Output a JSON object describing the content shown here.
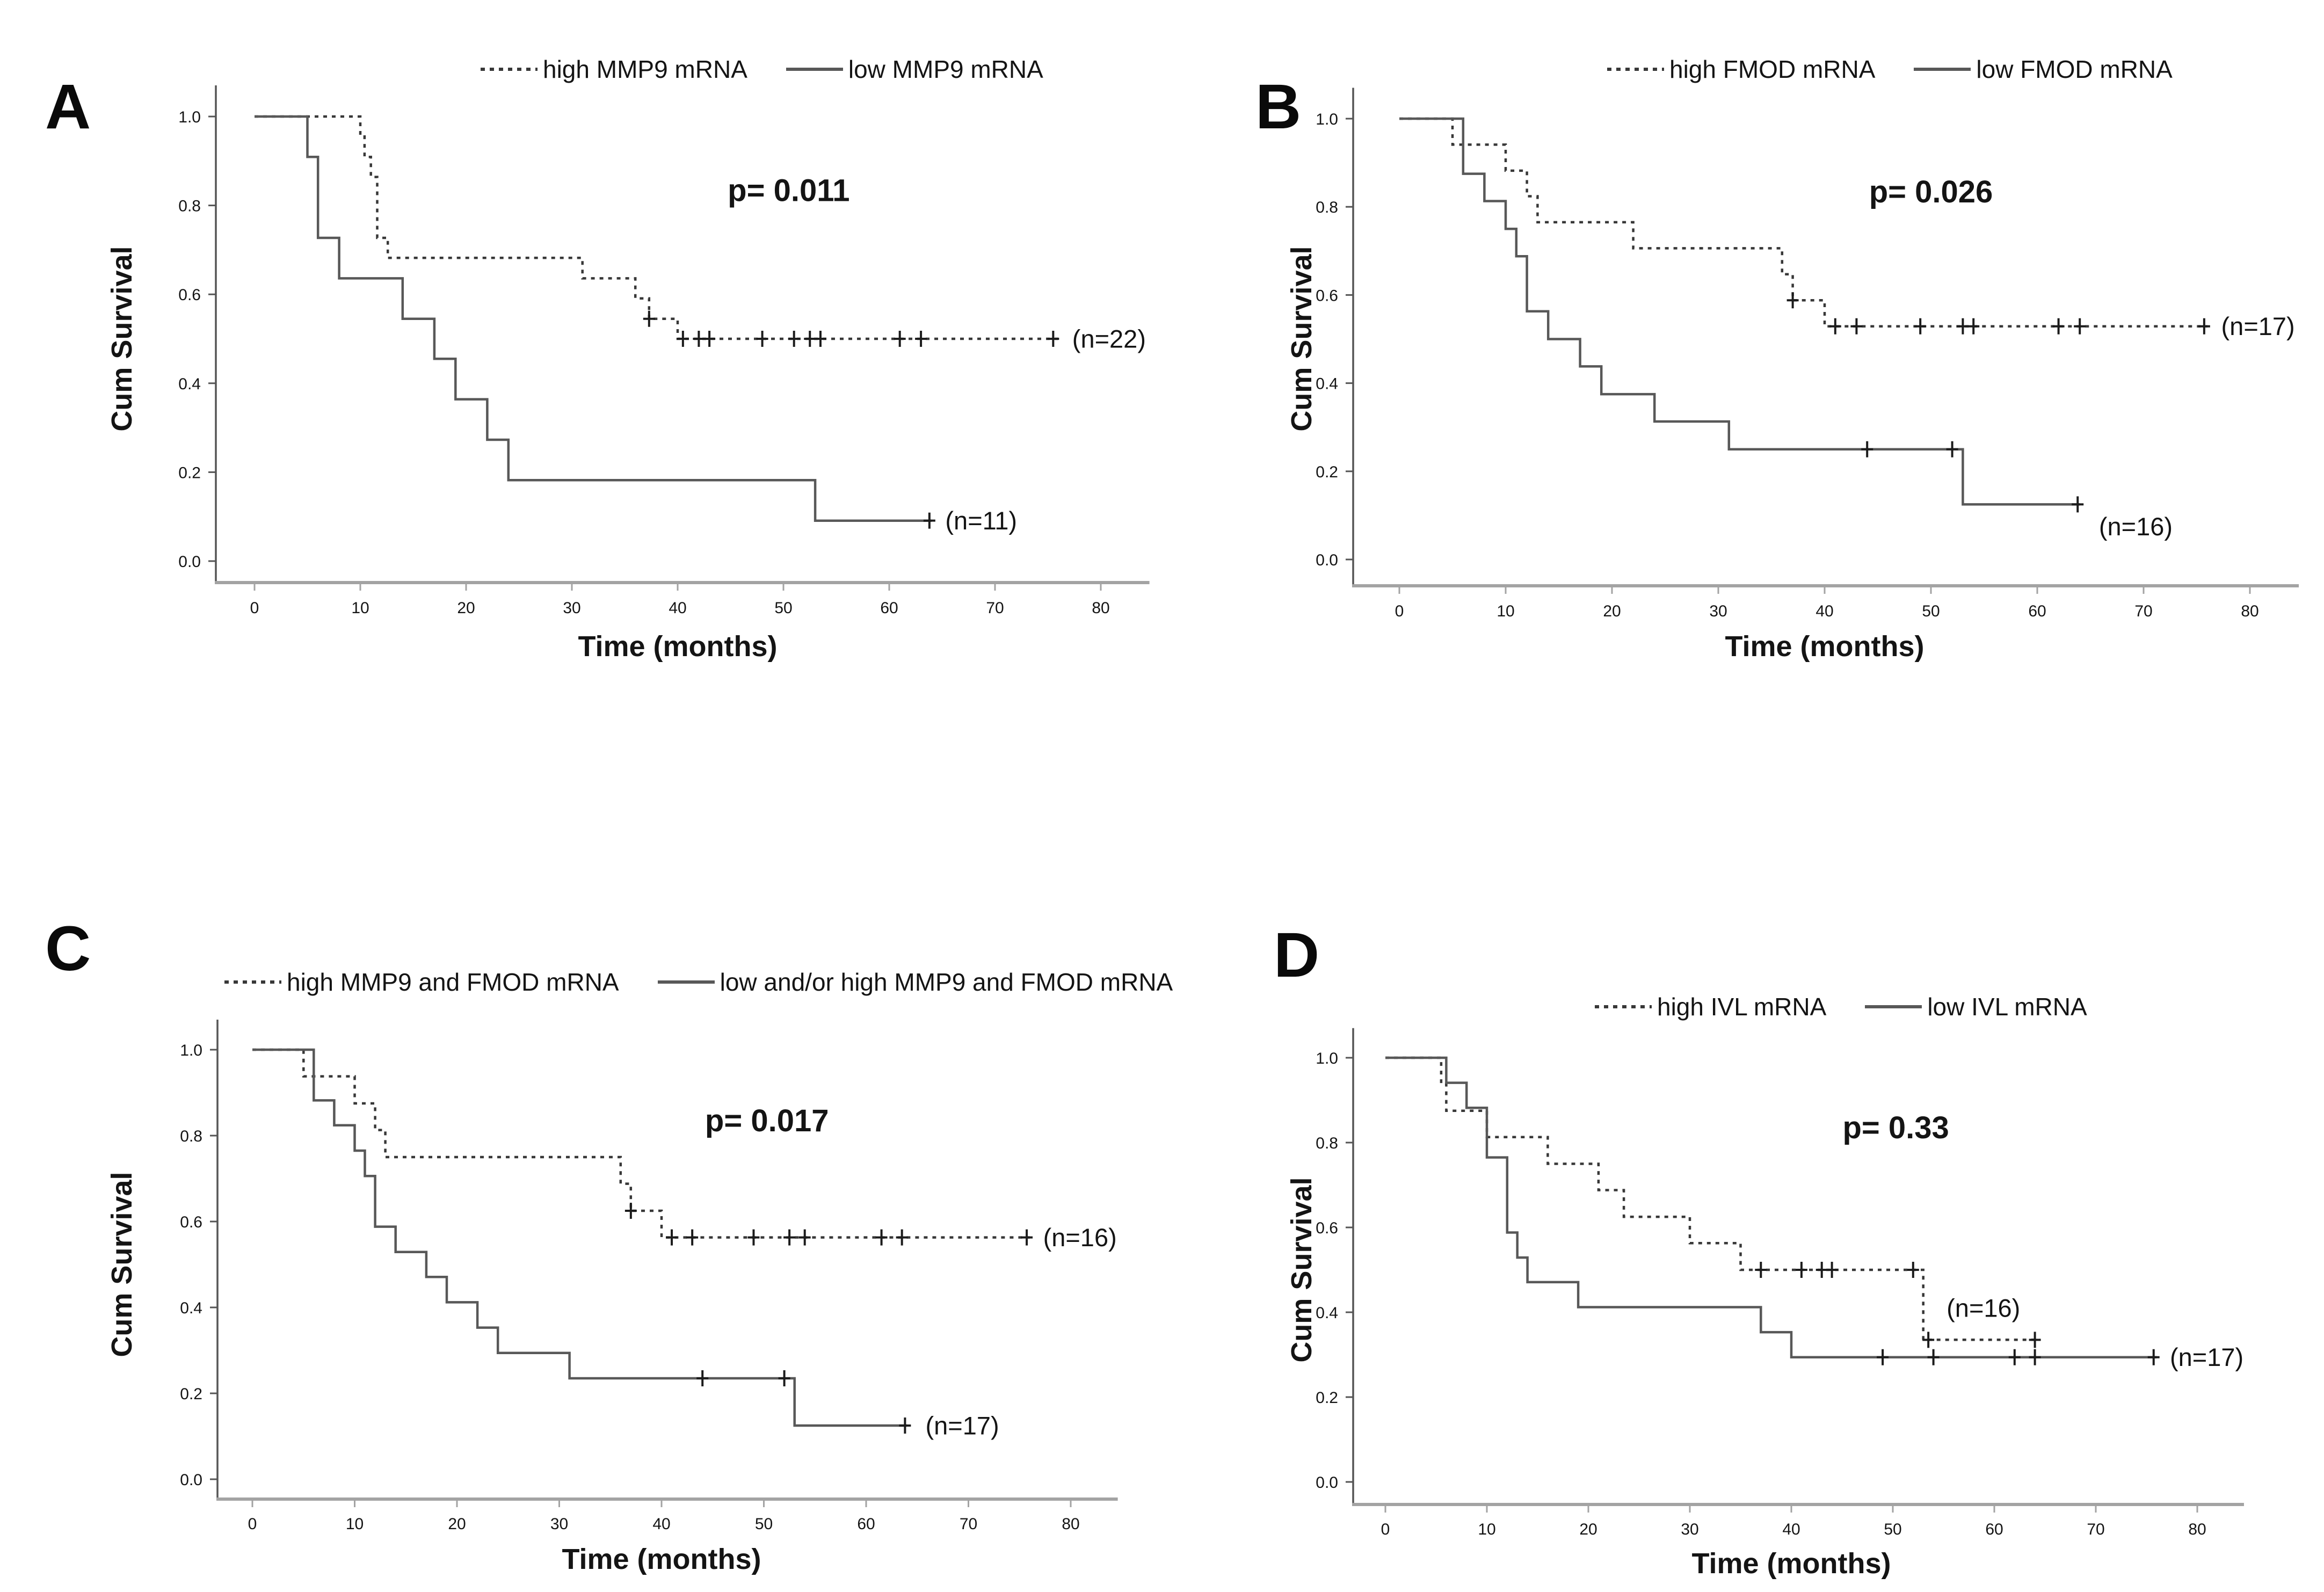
{
  "figure": {
    "description": "Four-panel Kaplan-Meier cumulative survival figure",
    "panel_letters": [
      "A",
      "B",
      "C",
      "D"
    ]
  },
  "colors": {
    "background": "#ffffff",
    "solid_line": "#585858",
    "dashed_line": "#383838",
    "x_axis": "#a3a3a3",
    "y_axis": "#555555",
    "censor_mark": "#1c1c1c",
    "text": "#141414"
  },
  "axes": {
    "xlabel": "Time (months)",
    "ylabel": "Cum Survival",
    "xticks": [
      0,
      10,
      20,
      30,
      40,
      50,
      60,
      70,
      80
    ],
    "yticks": [
      "1.0",
      "0.8",
      "0.6",
      "0.4",
      "0.2",
      "0.0"
    ],
    "xlim": [
      0,
      80
    ],
    "ylim": [
      0.0,
      1.0
    ],
    "grid": false
  },
  "chart_data": [
    {
      "type": "line",
      "panel": "A",
      "p_value": "p= 0.011",
      "p_at": [
        50.5,
        0.81
      ],
      "series": [
        {
          "name": "high MMP9 mRNA",
          "style": "dashed",
          "n": 22,
          "end_label": "(n=22)",
          "end_label_at": [
            77.3,
            0.5
          ],
          "points": [
            [
              0,
              1.0
            ],
            [
              10,
              1.0
            ],
            [
              10,
              0.955
            ],
            [
              10.4,
              0.955
            ],
            [
              10.4,
              0.909
            ],
            [
              11,
              0.909
            ],
            [
              11,
              0.864
            ],
            [
              11.6,
              0.864
            ],
            [
              11.6,
              0.727
            ],
            [
              12.6,
              0.727
            ],
            [
              12.6,
              0.682
            ],
            [
              31,
              0.682
            ],
            [
              31,
              0.636
            ],
            [
              36,
              0.636
            ],
            [
              36,
              0.591
            ],
            [
              37.3,
              0.591
            ],
            [
              37.3,
              0.545
            ],
            [
              40,
              0.545
            ],
            [
              40,
              0.5
            ],
            [
              76,
              0.5
            ]
          ],
          "censors": [
            [
              37.3,
              0.545
            ],
            [
              40.5,
              0.5
            ],
            [
              42,
              0.5
            ],
            [
              43,
              0.5
            ],
            [
              48,
              0.5
            ],
            [
              51,
              0.5
            ],
            [
              52.5,
              0.5
            ],
            [
              53.5,
              0.5
            ],
            [
              61,
              0.5
            ],
            [
              63,
              0.5
            ],
            [
              75.5,
              0.5
            ]
          ]
        },
        {
          "name": "low MMP9 mRNA",
          "style": "solid",
          "n": 11,
          "end_label": "(n=11)",
          "end_label_at": [
            65.3,
            0.091
          ],
          "points": [
            [
              0,
              1.0
            ],
            [
              5,
              1.0
            ],
            [
              5,
              0.909
            ],
            [
              6,
              0.909
            ],
            [
              6,
              0.727
            ],
            [
              8,
              0.727
            ],
            [
              8,
              0.636
            ],
            [
              14,
              0.636
            ],
            [
              14,
              0.545
            ],
            [
              17,
              0.545
            ],
            [
              17,
              0.455
            ],
            [
              19,
              0.455
            ],
            [
              19,
              0.364
            ],
            [
              22,
              0.364
            ],
            [
              22,
              0.273
            ],
            [
              24,
              0.273
            ],
            [
              24,
              0.182
            ],
            [
              53,
              0.182
            ],
            [
              53,
              0.091
            ],
            [
              64,
              0.091
            ]
          ],
          "censors": [
            [
              63.8,
              0.091
            ]
          ]
        }
      ]
    },
    {
      "type": "line",
      "panel": "B",
      "p_value": "p= 0.026",
      "p_at": [
        50,
        0.81
      ],
      "series": [
        {
          "name": "high FMOD mRNA",
          "style": "dashed",
          "n": 17,
          "end_label": "(n=17)",
          "end_label_at": [
            77.3,
            0.529
          ],
          "points": [
            [
              0,
              1.0
            ],
            [
              5,
              1.0
            ],
            [
              5,
              0.941
            ],
            [
              10,
              0.941
            ],
            [
              10,
              0.882
            ],
            [
              12,
              0.882
            ],
            [
              12,
              0.824
            ],
            [
              13,
              0.824
            ],
            [
              13,
              0.765
            ],
            [
              22,
              0.765
            ],
            [
              22,
              0.706
            ],
            [
              36,
              0.706
            ],
            [
              36,
              0.647
            ],
            [
              37,
              0.647
            ],
            [
              37,
              0.588
            ],
            [
              40,
              0.588
            ],
            [
              40,
              0.529
            ],
            [
              76,
              0.529
            ]
          ],
          "censors": [
            [
              37,
              0.588
            ],
            [
              41,
              0.529
            ],
            [
              43,
              0.529
            ],
            [
              49,
              0.529
            ],
            [
              53,
              0.529
            ],
            [
              54,
              0.529
            ],
            [
              62,
              0.529
            ],
            [
              64,
              0.529
            ],
            [
              75.7,
              0.529
            ]
          ]
        },
        {
          "name": "low FMOD mRNA",
          "style": "solid",
          "n": 16,
          "end_label": "(n=16)",
          "end_label_at": [
            65.8,
            0.075
          ],
          "points": [
            [
              0,
              1.0
            ],
            [
              6,
              1.0
            ],
            [
              6,
              0.875
            ],
            [
              8,
              0.875
            ],
            [
              8,
              0.813
            ],
            [
              10,
              0.813
            ],
            [
              10,
              0.75
            ],
            [
              11,
              0.75
            ],
            [
              11,
              0.688
            ],
            [
              12,
              0.688
            ],
            [
              12,
              0.563
            ],
            [
              14,
              0.563
            ],
            [
              14,
              0.5
            ],
            [
              17,
              0.5
            ],
            [
              17,
              0.438
            ],
            [
              19,
              0.438
            ],
            [
              19,
              0.375
            ],
            [
              24,
              0.375
            ],
            [
              24,
              0.313
            ],
            [
              31,
              0.313
            ],
            [
              31,
              0.25
            ],
            [
              53,
              0.25
            ],
            [
              53,
              0.125
            ],
            [
              64,
              0.125
            ]
          ],
          "censors": [
            [
              44,
              0.25
            ],
            [
              52,
              0.25
            ],
            [
              63.8,
              0.125
            ]
          ]
        }
      ]
    },
    {
      "type": "line",
      "panel": "C",
      "p_value": "p= 0.017",
      "p_at": [
        50.3,
        0.81
      ],
      "series": [
        {
          "name": "high MMP9 and FMOD mRNA",
          "style": "dashed",
          "n": 16,
          "end_label": "(n=16)",
          "end_label_at": [
            77.3,
            0.563
          ],
          "points": [
            [
              0,
              1.0
            ],
            [
              5,
              1.0
            ],
            [
              5,
              0.938
            ],
            [
              10,
              0.938
            ],
            [
              10,
              0.875
            ],
            [
              12,
              0.875
            ],
            [
              12,
              0.813
            ],
            [
              13,
              0.813
            ],
            [
              13,
              0.75
            ],
            [
              36,
              0.75
            ],
            [
              36,
              0.688
            ],
            [
              37,
              0.688
            ],
            [
              37,
              0.625
            ],
            [
              40,
              0.625
            ],
            [
              40,
              0.563
            ],
            [
              76,
              0.563
            ]
          ],
          "censors": [
            [
              37,
              0.625
            ],
            [
              41,
              0.563
            ],
            [
              43,
              0.563
            ],
            [
              49,
              0.563
            ],
            [
              52.5,
              0.563
            ],
            [
              54,
              0.563
            ],
            [
              61.5,
              0.563
            ],
            [
              63.5,
              0.563
            ],
            [
              75.7,
              0.563
            ]
          ]
        },
        {
          "name": "low and/or high MMP9 and FMOD mRNA",
          "style": "solid",
          "n": 17,
          "end_label": "(n=17)",
          "end_label_at": [
            65.8,
            0.125
          ],
          "points": [
            [
              0,
              1.0
            ],
            [
              6,
              1.0
            ],
            [
              6,
              0.882
            ],
            [
              8,
              0.882
            ],
            [
              8,
              0.824
            ],
            [
              10,
              0.824
            ],
            [
              10,
              0.765
            ],
            [
              11,
              0.765
            ],
            [
              11,
              0.706
            ],
            [
              12,
              0.706
            ],
            [
              12,
              0.588
            ],
            [
              14,
              0.588
            ],
            [
              14,
              0.529
            ],
            [
              17,
              0.529
            ],
            [
              17,
              0.471
            ],
            [
              19,
              0.471
            ],
            [
              19,
              0.412
            ],
            [
              22,
              0.412
            ],
            [
              22,
              0.353
            ],
            [
              24,
              0.353
            ],
            [
              24,
              0.294
            ],
            [
              31,
              0.294
            ],
            [
              31,
              0.235
            ],
            [
              53,
              0.235
            ],
            [
              53,
              0.125
            ],
            [
              64,
              0.125
            ]
          ],
          "censors": [
            [
              44,
              0.235
            ],
            [
              52,
              0.235
            ],
            [
              63.8,
              0.125
            ]
          ]
        }
      ]
    },
    {
      "type": "line",
      "panel": "D",
      "p_value": "p= 0.33",
      "p_at": [
        50.3,
        0.81
      ],
      "series": [
        {
          "name": "high IVL mRNA",
          "style": "dashed",
          "n": 16,
          "end_label": "(n=16)",
          "end_label_at": [
            55.3,
            0.41
          ],
          "points": [
            [
              0,
              1.0
            ],
            [
              5.5,
              1.0
            ],
            [
              5.5,
              0.938
            ],
            [
              6,
              0.938
            ],
            [
              6,
              0.875
            ],
            [
              10,
              0.875
            ],
            [
              10,
              0.813
            ],
            [
              16,
              0.813
            ],
            [
              16,
              0.75
            ],
            [
              21,
              0.75
            ],
            [
              21,
              0.688
            ],
            [
              23.5,
              0.688
            ],
            [
              23.5,
              0.625
            ],
            [
              30,
              0.625
            ],
            [
              30,
              0.563
            ],
            [
              35,
              0.563
            ],
            [
              35,
              0.5
            ],
            [
              53,
              0.5
            ],
            [
              53,
              0.335
            ],
            [
              64.5,
              0.335
            ]
          ],
          "censors": [
            [
              37,
              0.5
            ],
            [
              41,
              0.5
            ],
            [
              43,
              0.5
            ],
            [
              44,
              0.5
            ],
            [
              52,
              0.5
            ],
            [
              53.5,
              0.335
            ],
            [
              64,
              0.335
            ]
          ]
        },
        {
          "name": "low IVL mRNA",
          "style": "solid",
          "n": 17,
          "end_label": "(n=17)",
          "end_label_at": [
            77.3,
            0.294
          ],
          "points": [
            [
              0,
              1.0
            ],
            [
              6,
              1.0
            ],
            [
              6,
              0.941
            ],
            [
              8,
              0.941
            ],
            [
              8,
              0.882
            ],
            [
              10,
              0.882
            ],
            [
              10,
              0.765
            ],
            [
              12,
              0.765
            ],
            [
              12,
              0.588
            ],
            [
              13,
              0.588
            ],
            [
              13,
              0.529
            ],
            [
              14,
              0.529
            ],
            [
              14,
              0.471
            ],
            [
              19,
              0.471
            ],
            [
              19,
              0.412
            ],
            [
              37,
              0.412
            ],
            [
              37,
              0.353
            ],
            [
              40,
              0.353
            ],
            [
              40,
              0.294
            ],
            [
              76,
              0.294
            ]
          ],
          "censors": [
            [
              49,
              0.294
            ],
            [
              54,
              0.294
            ],
            [
              62,
              0.294
            ],
            [
              64,
              0.294
            ],
            [
              75.7,
              0.294
            ]
          ]
        }
      ]
    }
  ]
}
